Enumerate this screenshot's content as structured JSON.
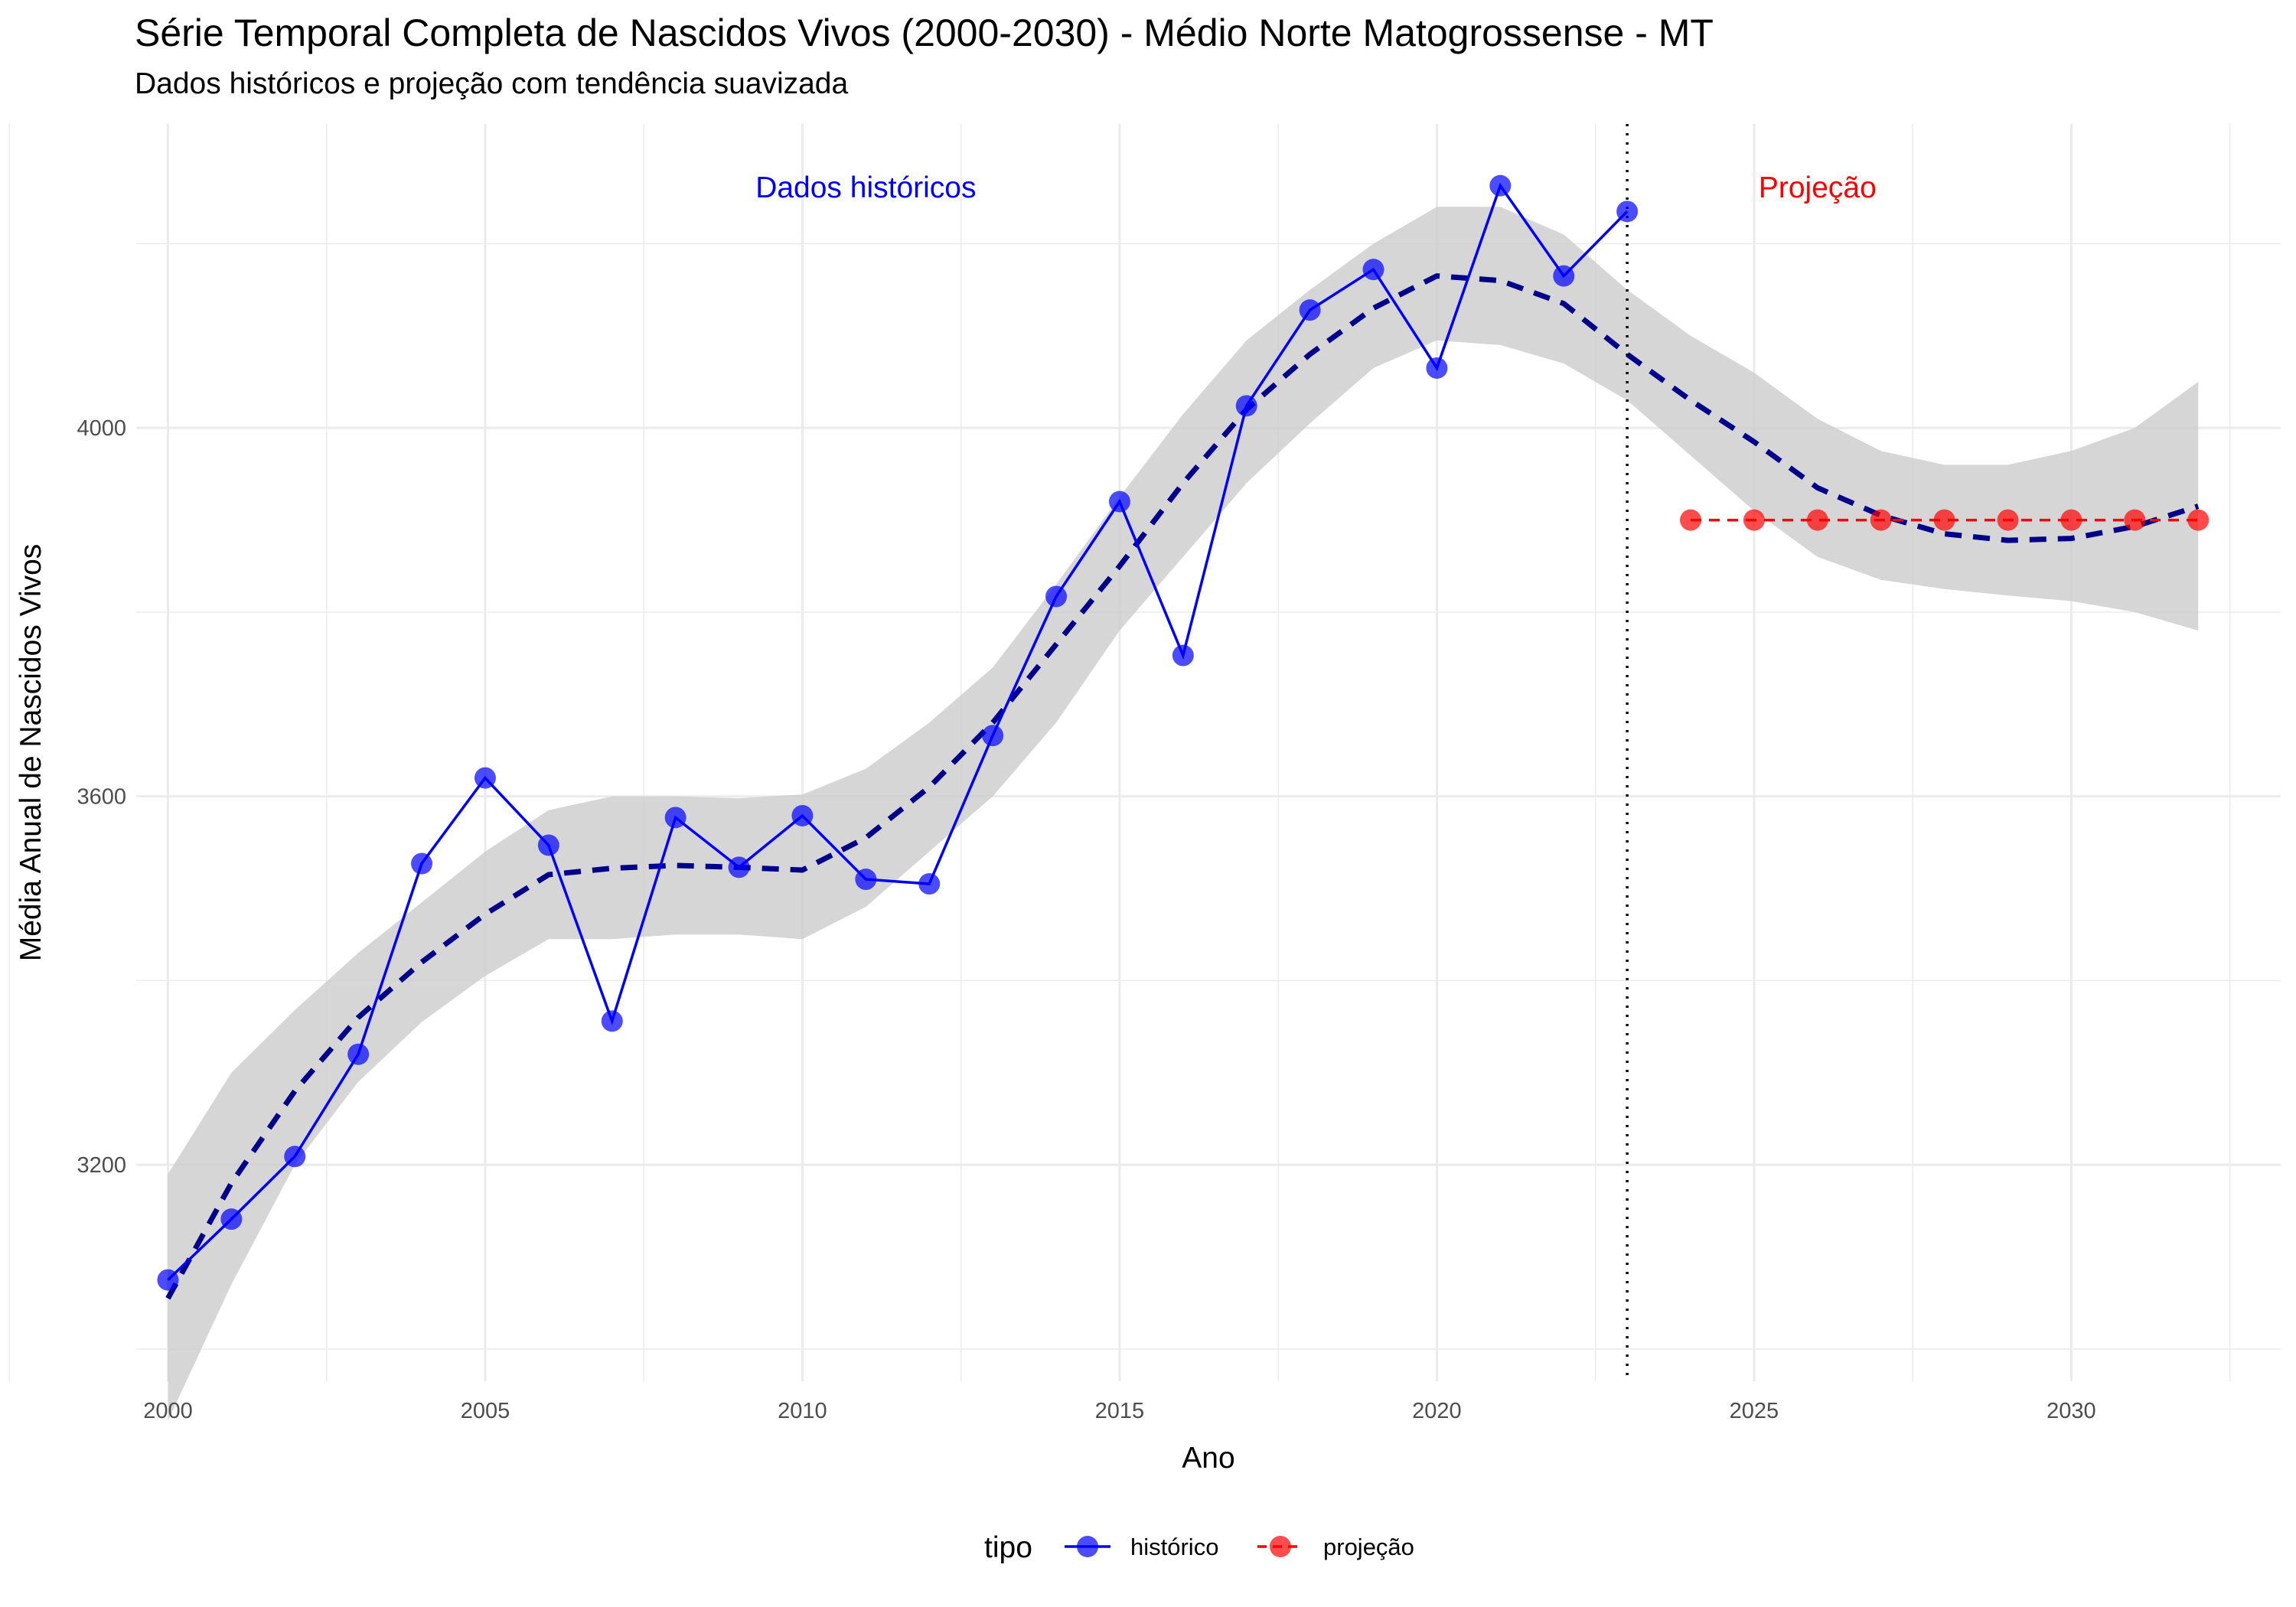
{
  "title": "Série Temporal Completa de Nascidos Vivos (2000-2030) -  Médio Norte Matogrossense - MT",
  "subtitle": "Dados históricos e projeção com tendência suavizada",
  "chart_data": {
    "type": "line",
    "xlabel": "Ano",
    "ylabel": "Média Anual de Nascidos Vivos",
    "xlim": [
      1999.5,
      2033.3
    ],
    "ylim": [
      2965,
      4330
    ],
    "x_ticks": [
      2000,
      2005,
      2010,
      2015,
      2020,
      2025,
      2030
    ],
    "y_ticks": [
      3200,
      3600,
      4000
    ],
    "grid": true,
    "vline_x": 2023,
    "annotations": [
      {
        "text": "Dados históricos",
        "x": 2011,
        "y": 4262,
        "color": "#0000ff"
      },
      {
        "text": "Projeção",
        "x": 2026,
        "y": 4262,
        "color": "#ff0000"
      }
    ],
    "legend": {
      "title": "tipo",
      "position": "bottom"
    },
    "series": [
      {
        "name": "histórico",
        "color": "#0000ff",
        "x": [
          2000,
          2001,
          2002,
          2003,
          2004,
          2005,
          2006,
          2007,
          2008,
          2009,
          2010,
          2011,
          2012,
          2013,
          2014,
          2015,
          2016,
          2017,
          2018,
          2019,
          2020,
          2021,
          2022,
          2023
        ],
        "values": [
          3075,
          3141,
          3209,
          3320,
          3527,
          3620,
          3547,
          3356,
          3577,
          3523,
          3579,
          3510,
          3505,
          3666,
          3817,
          3920,
          3753,
          4024,
          4128,
          4172,
          4065,
          4263,
          4165,
          4235
        ]
      },
      {
        "name": "projeção",
        "color": "#ff0000",
        "x": [
          2024,
          2025,
          2026,
          2027,
          2028,
          2029,
          2030,
          2031,
          2032
        ],
        "values": [
          3900,
          3900,
          3900,
          3900,
          3900,
          3900,
          3900,
          3900,
          3900
        ]
      }
    ],
    "trend": {
      "color": "#00008b",
      "x": [
        2000,
        2001,
        2002,
        2003,
        2004,
        2005,
        2006,
        2007,
        2008,
        2009,
        2010,
        2011,
        2012,
        2013,
        2014,
        2015,
        2016,
        2017,
        2018,
        2019,
        2020,
        2021,
        2022,
        2023,
        2024,
        2025,
        2026,
        2027,
        2028,
        2029,
        2030,
        2031,
        2032
      ],
      "values": [
        3055,
        3180,
        3280,
        3360,
        3420,
        3472,
        3515,
        3522,
        3525,
        3523,
        3520,
        3555,
        3610,
        3680,
        3765,
        3850,
        3940,
        4020,
        4080,
        4130,
        4165,
        4160,
        4135,
        4080,
        4030,
        3985,
        3935,
        3905,
        3885,
        3878,
        3880,
        3893,
        3915
      ],
      "lower": [
        2922,
        3070,
        3200,
        3290,
        3355,
        3405,
        3445,
        3445,
        3450,
        3450,
        3445,
        3480,
        3540,
        3600,
        3680,
        3780,
        3860,
        3940,
        4005,
        4065,
        4095,
        4090,
        4070,
        4030,
        3970,
        3910,
        3860,
        3835,
        3825,
        3818,
        3812,
        3800,
        3780
      ],
      "upper": [
        3190,
        3300,
        3368,
        3430,
        3485,
        3540,
        3585,
        3600,
        3600,
        3598,
        3602,
        3630,
        3680,
        3740,
        3830,
        3925,
        4015,
        4095,
        4150,
        4200,
        4240,
        4240,
        4210,
        4150,
        4100,
        4060,
        4010,
        3975,
        3960,
        3960,
        3975,
        4000,
        4050
      ]
    }
  }
}
